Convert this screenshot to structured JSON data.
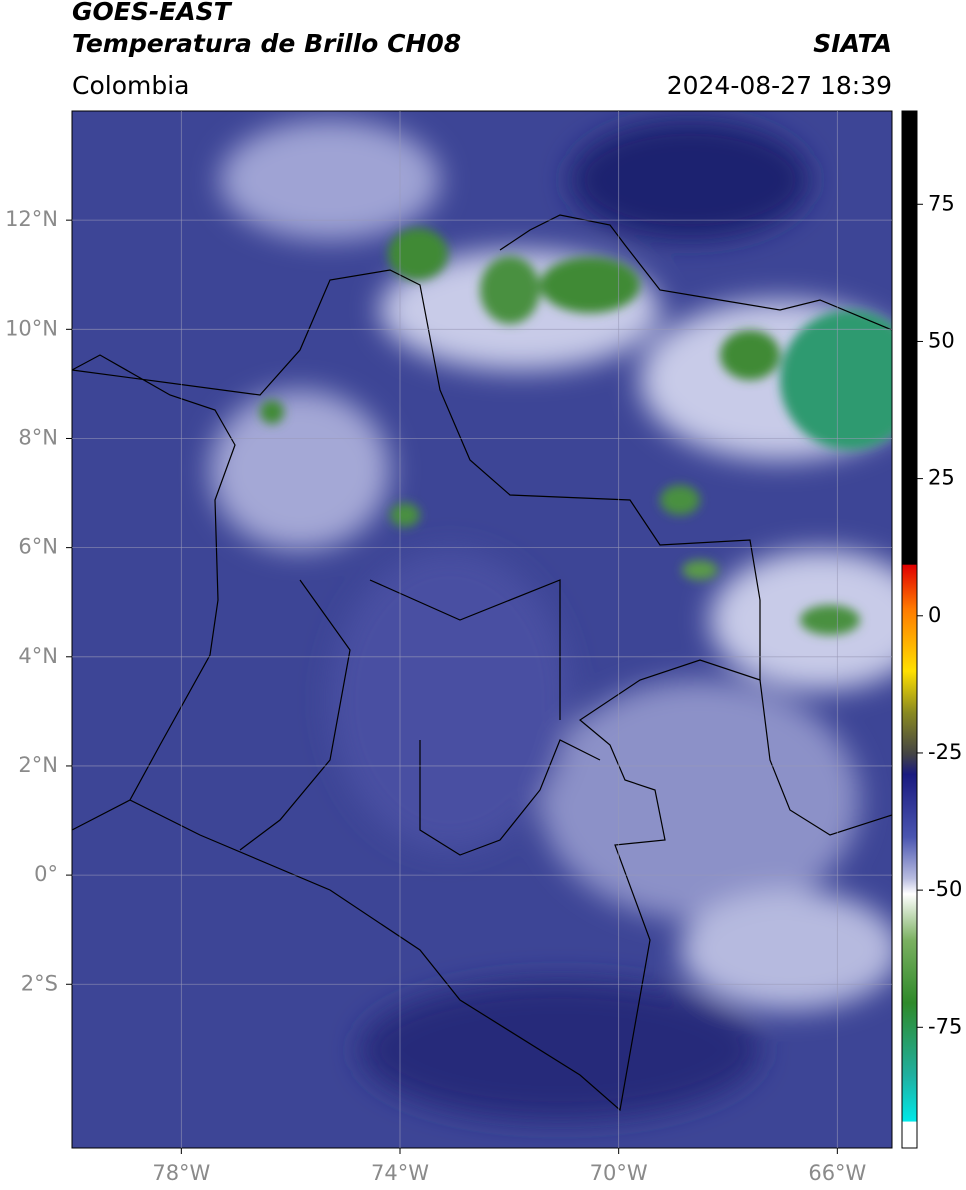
{
  "header": {
    "title": "GOES-EAST",
    "subtitle": "Temperatura de Brillo CH08",
    "source": "SIATA",
    "region": "Colombia",
    "timestamp": "2024-08-27 18:39"
  },
  "map": {
    "xlim": [
      -80,
      -65
    ],
    "ylim": [
      -5,
      14
    ],
    "xticks": [
      {
        "value": -78,
        "label": "78°W"
      },
      {
        "value": -74,
        "label": "74°W"
      },
      {
        "value": -70,
        "label": "70°W"
      },
      {
        "value": -66,
        "label": "66°W"
      }
    ],
    "yticks": [
      {
        "value": 12,
        "label": "12°N"
      },
      {
        "value": 10,
        "label": "10°N"
      },
      {
        "value": 8,
        "label": "8°N"
      },
      {
        "value": 6,
        "label": "6°N"
      },
      {
        "value": 4,
        "label": "4°N"
      },
      {
        "value": 2,
        "label": "2°N"
      },
      {
        "value": 0,
        "label": "0°"
      },
      {
        "value": -2,
        "label": "2°S"
      }
    ],
    "grid": true
  },
  "colorbar": {
    "lim": [
      -97,
      92
    ],
    "ticks": [
      75,
      50,
      25,
      0,
      -25,
      -50,
      -75
    ]
  }
}
